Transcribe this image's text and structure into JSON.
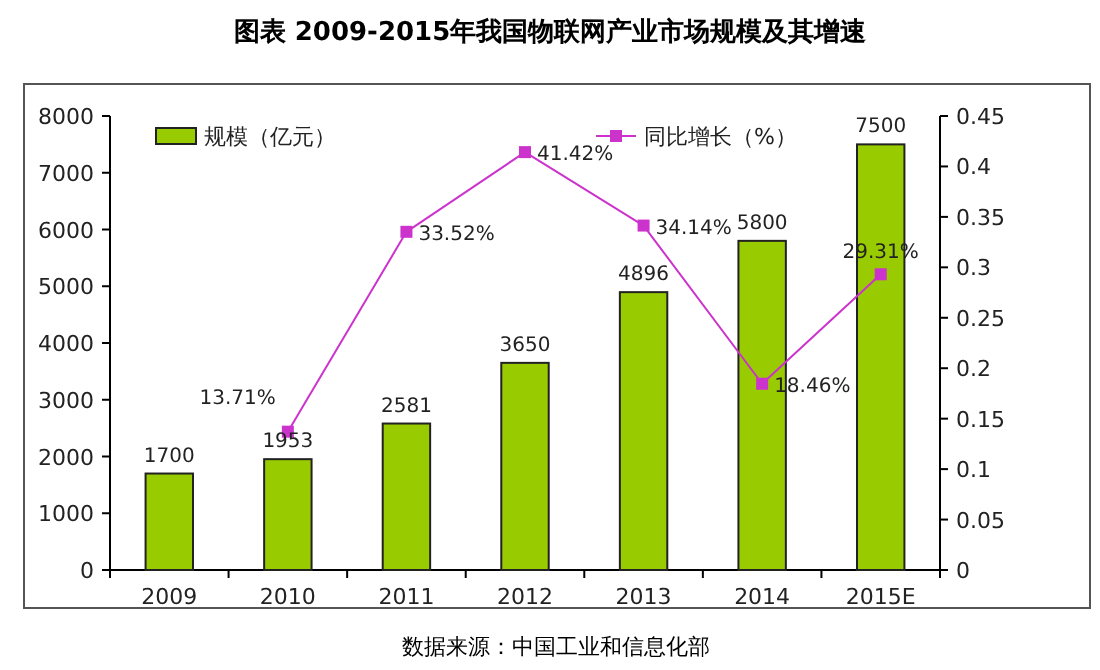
{
  "chart_data": {
    "type": "bar",
    "title": "图表    2009-2015年我国物联网产业市场规模及其增速",
    "categories": [
      "2009",
      "2010",
      "2011",
      "2012",
      "2013",
      "2014",
      "2015E"
    ],
    "series": [
      {
        "name": "规模（亿元）",
        "color": "#99cc00",
        "values": [
          1700,
          1953,
          2581,
          3650,
          4896,
          5800,
          7500
        ]
      },
      {
        "name": "同比增长（%）",
        "type": "line",
        "axis": "y2",
        "color": "#cc33cc",
        "marker": "square",
        "values": [
          null,
          0.1371,
          0.3352,
          0.4142,
          0.3414,
          0.1846,
          0.2931
        ],
        "value_labels": [
          null,
          "13.71%",
          "33.52%",
          "41.42%",
          "34.14%",
          "18.46%",
          "29.31%"
        ]
      }
    ],
    "data_labels": true,
    "ylim": [
      0,
      8000
    ],
    "yticks": [
      0,
      1000,
      2000,
      3000,
      4000,
      5000,
      6000,
      7000,
      8000
    ],
    "y2lim": [
      0,
      0.45
    ],
    "y2ticks": [
      0,
      0.05,
      0.1,
      0.15,
      0.2,
      0.25,
      0.3,
      0.35,
      0.4,
      0.45
    ],
    "grid": false,
    "legend": "top",
    "annotations": [
      "数据来源：中国工业和信息化部"
    ]
  }
}
